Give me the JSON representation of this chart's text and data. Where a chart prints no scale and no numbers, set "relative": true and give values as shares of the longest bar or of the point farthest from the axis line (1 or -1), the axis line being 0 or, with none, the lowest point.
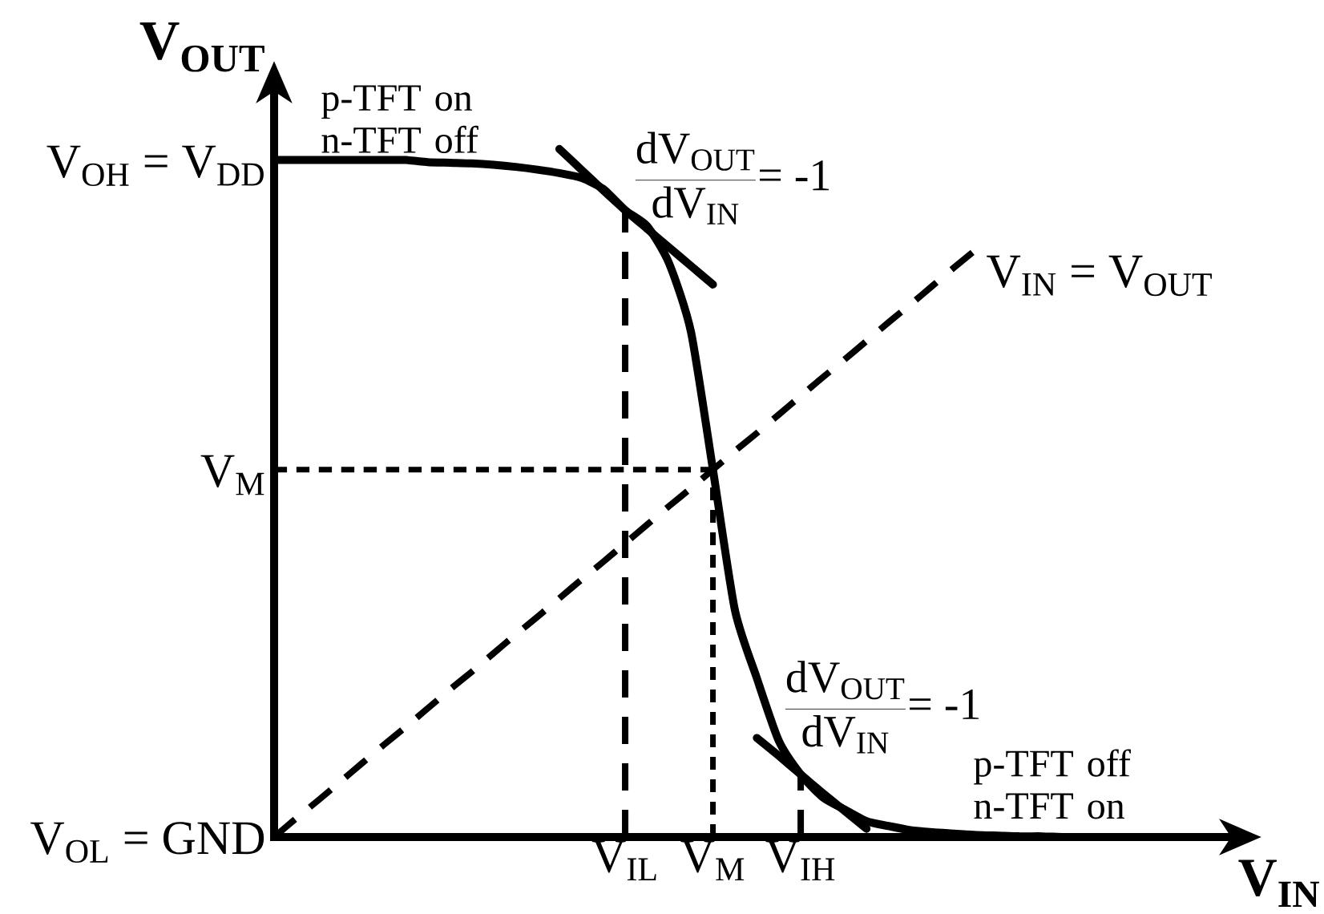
{
  "chart_data": {
    "type": "line",
    "relative": true,
    "xlabel": "V$_{IN}$",
    "ylabel": "V$_{OUT}$",
    "categories": [
      null,
      null,
      null,
      null,
      null,
      null,
      null,
      null,
      null,
      null,
      null,
      null,
      null,
      null,
      null,
      null,
      "V$_{IL}$",
      null,
      null,
      null,
      "V$_{M}$",
      null,
      null,
      null,
      "V$_{IH}$",
      null,
      null,
      null,
      null,
      null,
      null,
      null,
      null,
      null,
      null,
      null,
      null,
      null,
      null,
      null,
      null,
      null,
      null,
      null,
      null
    ],
    "series": [
      {
        "color": "#000000",
        "values": [
          0.984,
          0.984,
          0.984,
          0.984,
          0.984,
          0.984,
          0.984,
          0.981,
          0.98,
          0.979,
          0.977,
          0.974,
          0.97,
          0.965,
          0.958,
          0.942,
          0.911,
          0.888,
          0.834,
          0.734,
          0.534,
          0.33,
          0.231,
          0.14,
          0.091,
          0.058,
          0.04,
          0.023,
          0.016,
          0.01,
          0.007,
          0.005,
          0.003,
          0.002,
          0.001,
          0.001,
          0,
          0,
          0,
          0,
          0,
          null,
          null,
          null,
          null
        ]
      },
      {
        "name": "V$_{IN}$ = V$_{OUT}$",
        "color": "#000000",
        "line_style": "dashed",
        "values": [
          0,
          0.027,
          0.053,
          0.08,
          0.107,
          0.134,
          0.16,
          0.187,
          0.214,
          0.24,
          0.267,
          0.294,
          0.32,
          0.347,
          0.374,
          0.4,
          0.427,
          0.454,
          0.481,
          0.507,
          0.534,
          0.561,
          0.587,
          0.614,
          0.641,
          0.668,
          0.694,
          0.721,
          0.748,
          0.774,
          0.801,
          0.828,
          0.854,
          null,
          null,
          null,
          null,
          null,
          null,
          null,
          null,
          null,
          null,
          null,
          null
        ]
      },
      {
        "color": "#000000",
        "values": [
          null,
          null,
          null,
          null,
          null,
          null,
          null,
          null,
          null,
          null,
          null,
          null,
          null,
          1,
          0.97,
          0.94,
          0.911,
          0.884,
          0.857,
          0.83,
          0.803,
          null,
          null,
          null,
          null,
          null,
          null,
          null,
          null,
          null,
          null,
          null,
          null,
          null,
          null,
          null,
          null,
          null,
          null,
          null,
          null,
          null,
          null,
          null,
          null
        ]
      },
      {
        "color": "#000000",
        "values": [
          null,
          null,
          null,
          null,
          null,
          null,
          null,
          null,
          null,
          null,
          null,
          null,
          null,
          null,
          null,
          null,
          null,
          null,
          null,
          null,
          null,
          null,
          0.144,
          0.118,
          0.091,
          0.064,
          0.038,
          0.012,
          null,
          null,
          null,
          null,
          null,
          null,
          null,
          null,
          null,
          null,
          null,
          null,
          null,
          null,
          null,
          null,
          null
        ]
      },
      {
        "color": "#000000",
        "line_style": "dotted",
        "values": [
          0.534,
          0.534,
          0.534,
          0.534,
          0.534,
          0.534,
          0.534,
          0.534,
          0.534,
          0.534,
          0.534,
          0.534,
          0.534,
          0.534,
          0.534,
          0.534,
          0.534,
          0.534,
          0.534,
          0.534,
          0.534,
          null,
          null,
          null,
          null,
          null,
          null,
          null,
          null,
          null,
          null,
          null,
          null,
          null,
          null,
          null,
          null,
          null,
          null,
          null,
          null,
          null,
          null,
          null,
          null
        ]
      }
    ],
    "ref_lines": [
      {
        "axis": "x",
        "value": "V$_{IL}$",
        "line_style": "dashed"
      },
      {
        "axis": "x",
        "value": "V$_{M}$",
        "line_style": "dotted"
      },
      {
        "axis": "x",
        "value": "V$_{IH}$",
        "line_style": "dashed"
      }
    ],
    "annotations": [
      "V$_{OH}$ = V$_{DD}$",
      "V$_{M}$",
      "V$_{OL}$ = GND",
      "p-TFT on n-TFT off",
      "p-TFT off n-TFT on",
      {
        "text": "\\frac{\\mathrm{dV_{OUT}}}{\\mathrm{dV_{IN}}}\\hbox{= -1}",
        "x": "V$_{IL}$",
        "y": 0.911
      },
      {
        "text": "\\frac{\\mathrm{dV_{OUT}}}{\\mathrm{dV_{IN}}}\\hbox{= -1}",
        "x": "V$_{IH}$",
        "y": 0.091
      }
    ]
  }
}
